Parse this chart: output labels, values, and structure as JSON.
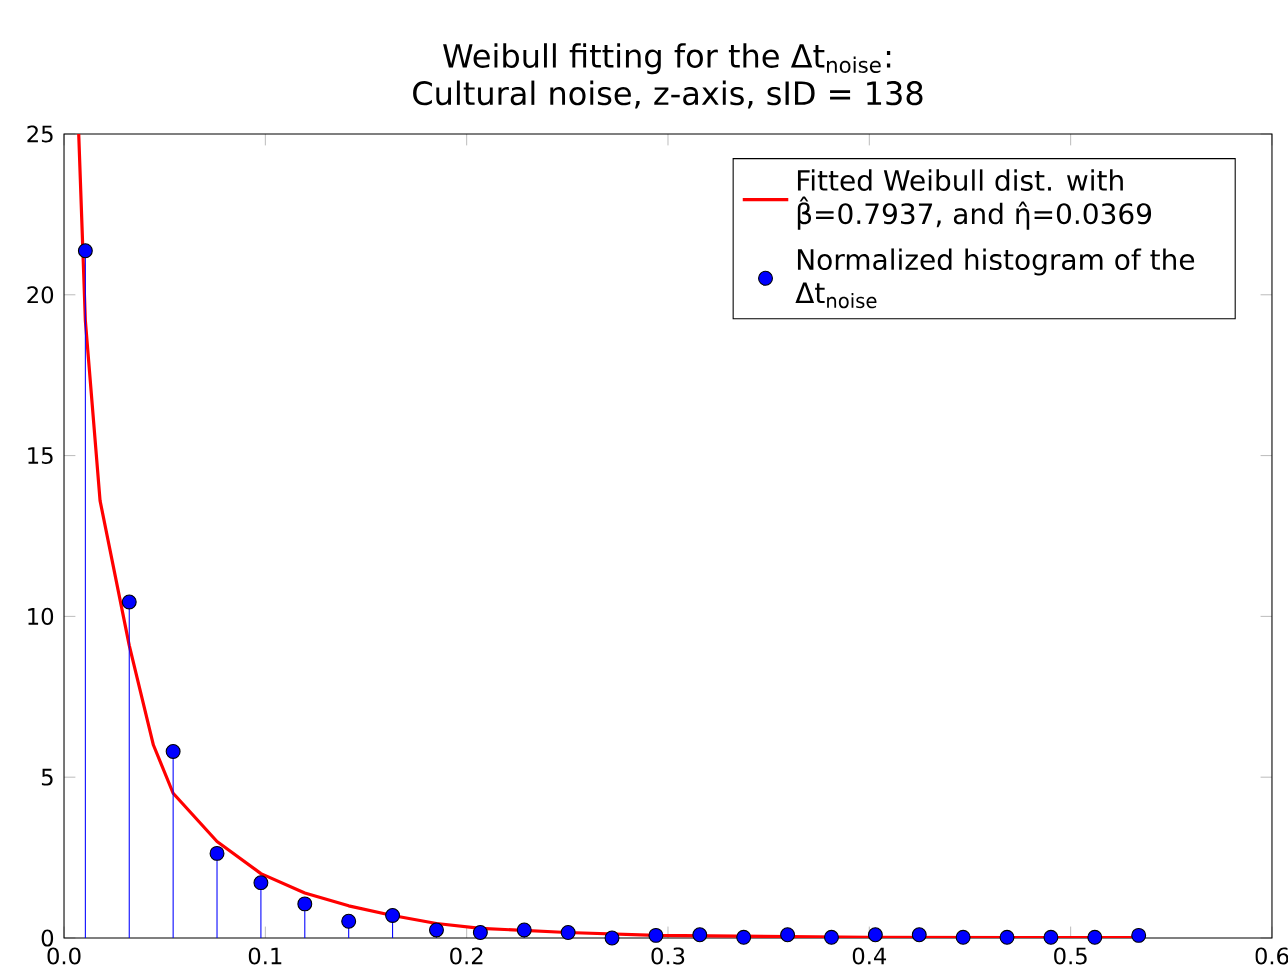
{
  "chart_data": {
    "type": "line",
    "title": "Weibull fitting for the Δt$_{noise}$:",
    "subtitle": "Cultural noise, z-axis, sID = 138",
    "series": [
      {
        "name": "Fitted Weibull dist. with β̂=0.7937, and η̂=0.0369",
        "color": "#ff0000",
        "marker": "none",
        "x": [
          0.0073,
          0.0106,
          0.0179,
          0.0324,
          0.0444,
          0.0542,
          0.076,
          0.0978,
          0.1196,
          0.1414,
          0.1632,
          0.185,
          0.207,
          0.25,
          0.294,
          0.4,
          0.534
        ],
        "values": [
          25,
          19.2,
          13.6,
          9.1,
          6.0,
          4.5,
          3.0,
          2.0,
          1.4,
          1.0,
          0.7,
          0.45,
          0.3,
          0.17,
          0.08,
          0.02,
          0.01
        ]
      },
      {
        "name": "Normalized histogram of the Δt$_{noise}$",
        "type": "lollipop",
        "color": "#0000ff",
        "marker": "circle",
        "x": [
          0.0106,
          0.0324,
          0.0542,
          0.076,
          0.0978,
          0.1196,
          0.1414,
          0.1632,
          0.185,
          0.2068,
          0.2286,
          0.2504,
          0.2722,
          0.294,
          0.3158,
          0.3376,
          0.3594,
          0.3812,
          0.403,
          0.4248,
          0.4466,
          0.4684,
          0.4902,
          0.512,
          0.5338
        ],
        "values": [
          21.37,
          10.45,
          5.8,
          2.63,
          1.72,
          1.06,
          0.52,
          0.7,
          0.25,
          0.17,
          0.25,
          0.17,
          0.0,
          0.08,
          0.1,
          0.02,
          0.1,
          0.02,
          0.1,
          0.1,
          0.02,
          0.02,
          0.02,
          0.02,
          0.08
        ]
      }
    ],
    "xlim": [
      0,
      0.6
    ],
    "ylim": [
      0,
      25
    ],
    "xticks": [
      {
        "value": 0,
        "label": "0.0"
      },
      0.1,
      0.2,
      0.3,
      0.4,
      0.5,
      0.6
    ],
    "yticks": [
      0,
      5,
      10,
      15,
      20,
      25
    ],
    "legend": "top right"
  }
}
